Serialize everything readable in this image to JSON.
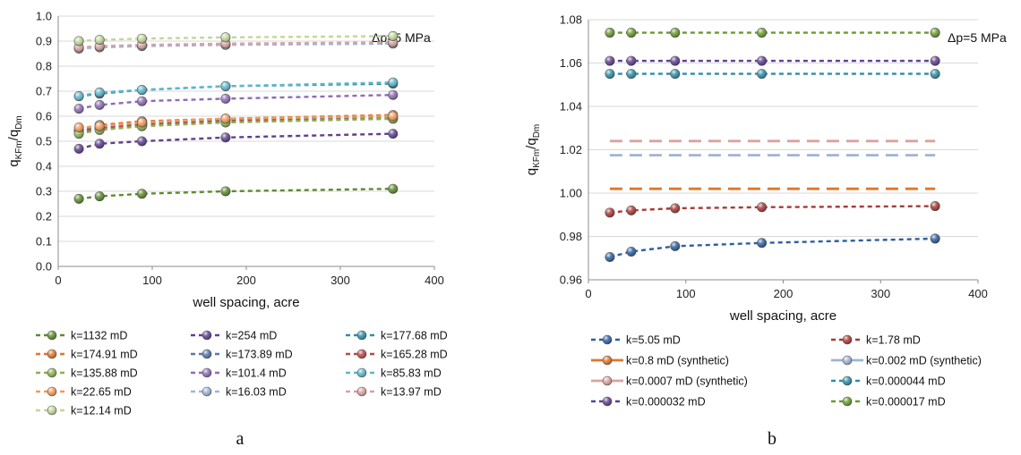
{
  "chart_data": [
    {
      "panel_label": "a",
      "type": "line",
      "xlabel": "well spacing, acre",
      "ylabel": {
        "base": "q",
        "sub1": "KFm",
        "sep": "/q",
        "sub2": "Dm"
      },
      "annotation": "Δp=5 MPa",
      "xlim": [
        0,
        400
      ],
      "ylim": [
        0,
        1.0
      ],
      "xticks": [
        "0",
        "100",
        "200",
        "300",
        "400"
      ],
      "yticks": [
        "0.0",
        "0.1",
        "0.2",
        "0.3",
        "0.4",
        "0.5",
        "0.6",
        "0.7",
        "0.8",
        "0.9",
        "1.0"
      ],
      "grid": "horizontal",
      "legend_position": "bottom",
      "x": [
        22,
        44,
        89,
        178,
        356
      ],
      "series": [
        {
          "name": "k=1132 mD",
          "color": "#5e8b2e",
          "values": [
            0.27,
            0.28,
            0.29,
            0.3,
            0.31
          ]
        },
        {
          "name": "k=254 mD",
          "color": "#5f3f8f",
          "values": [
            0.47,
            0.49,
            0.5,
            0.515,
            0.53
          ]
        },
        {
          "name": "k=177.68 mD",
          "color": "#2e8ea6",
          "values": [
            0.68,
            0.69,
            0.705,
            0.72,
            0.73
          ]
        },
        {
          "name": "k=174.91 mD",
          "color": "#e0762a",
          "values": [
            0.545,
            0.565,
            0.58,
            0.59,
            0.605
          ]
        },
        {
          "name": "k=173.89 mD",
          "color": "#5577aa",
          "values": [
            0.54,
            0.555,
            0.57,
            0.585,
            0.595
          ]
        },
        {
          "name": "k=165.28 mD",
          "color": "#b84a4a",
          "values": [
            0.535,
            0.55,
            0.565,
            0.58,
            0.59
          ]
        },
        {
          "name": "k=135.88 mD",
          "color": "#8ab04e",
          "values": [
            0.53,
            0.545,
            0.56,
            0.575,
            0.59
          ]
        },
        {
          "name": "k=101.4 mD",
          "color": "#8e6cb5",
          "values": [
            0.63,
            0.645,
            0.66,
            0.67,
            0.685
          ]
        },
        {
          "name": "k=85.83 mD",
          "color": "#5cb7cc",
          "values": [
            0.68,
            0.695,
            0.705,
            0.72,
            0.735
          ]
        },
        {
          "name": "k=22.65 mD",
          "color": "#f29a5a",
          "values": [
            0.555,
            0.56,
            0.575,
            0.59,
            0.6
          ]
        },
        {
          "name": "k=16.03 mD",
          "color": "#9fb4d4",
          "values": [
            0.87,
            0.875,
            0.88,
            0.885,
            0.89
          ]
        },
        {
          "name": "k=13.97 mD",
          "color": "#d9a3a0",
          "values": [
            0.875,
            0.88,
            0.885,
            0.89,
            0.895
          ]
        },
        {
          "name": "k=12.14 mD",
          "color": "#c3d69b",
          "values": [
            0.9,
            0.905,
            0.91,
            0.915,
            0.92
          ]
        }
      ]
    },
    {
      "panel_label": "b",
      "type": "line",
      "xlabel": "well spacing, acre",
      "ylabel": {
        "base": "q",
        "sub1": "KFm",
        "sep": "/q",
        "sub2": "Dm"
      },
      "annotation": "Δp=5 MPa",
      "xlim": [
        0,
        400
      ],
      "ylim": [
        0.96,
        1.08
      ],
      "xticks": [
        "0",
        "100",
        "200",
        "300",
        "400"
      ],
      "yticks": [
        "0.96",
        "0.98",
        "1.00",
        "1.02",
        "1.04",
        "1.06",
        "1.08"
      ],
      "grid": "horizontal",
      "legend_position": "bottom",
      "x": [
        22,
        44,
        89,
        178,
        356
      ],
      "series": [
        {
          "name": "k=5.05 mD",
          "color": "#2f5f9e",
          "markers": true,
          "values": [
            0.9705,
            0.973,
            0.9755,
            0.977,
            0.979
          ]
        },
        {
          "name": "k=1.78 mD",
          "color": "#a83a36",
          "markers": true,
          "values": [
            0.991,
            0.992,
            0.993,
            0.9935,
            0.994
          ]
        },
        {
          "name": "k=0.8 mD (synthetic)",
          "color": "#e0762a",
          "markers": false,
          "values": [
            1.002,
            1.002,
            1.002,
            1.002,
            1.002
          ]
        },
        {
          "name": "k=0.002 mD (synthetic)",
          "color": "#9fb4d4",
          "markers": false,
          "values": [
            1.0175,
            1.0175,
            1.0175,
            1.0175,
            1.0175
          ]
        },
        {
          "name": "k=0.0007 mD (synthetic)",
          "color": "#d9a3a0",
          "markers": false,
          "values": [
            1.024,
            1.024,
            1.024,
            1.024,
            1.024
          ]
        },
        {
          "name": "k=0.000044 mD",
          "color": "#2e8ea6",
          "markers": true,
          "values": [
            1.055,
            1.055,
            1.055,
            1.055,
            1.055
          ]
        },
        {
          "name": "k=0.000032 mD",
          "color": "#5f3f8f",
          "markers": true,
          "values": [
            1.061,
            1.061,
            1.061,
            1.061,
            1.061
          ]
        },
        {
          "name": "k=0.000017 mD",
          "color": "#6a9a2e",
          "markers": true,
          "values": [
            1.074,
            1.074,
            1.074,
            1.074,
            1.074
          ]
        }
      ]
    }
  ]
}
